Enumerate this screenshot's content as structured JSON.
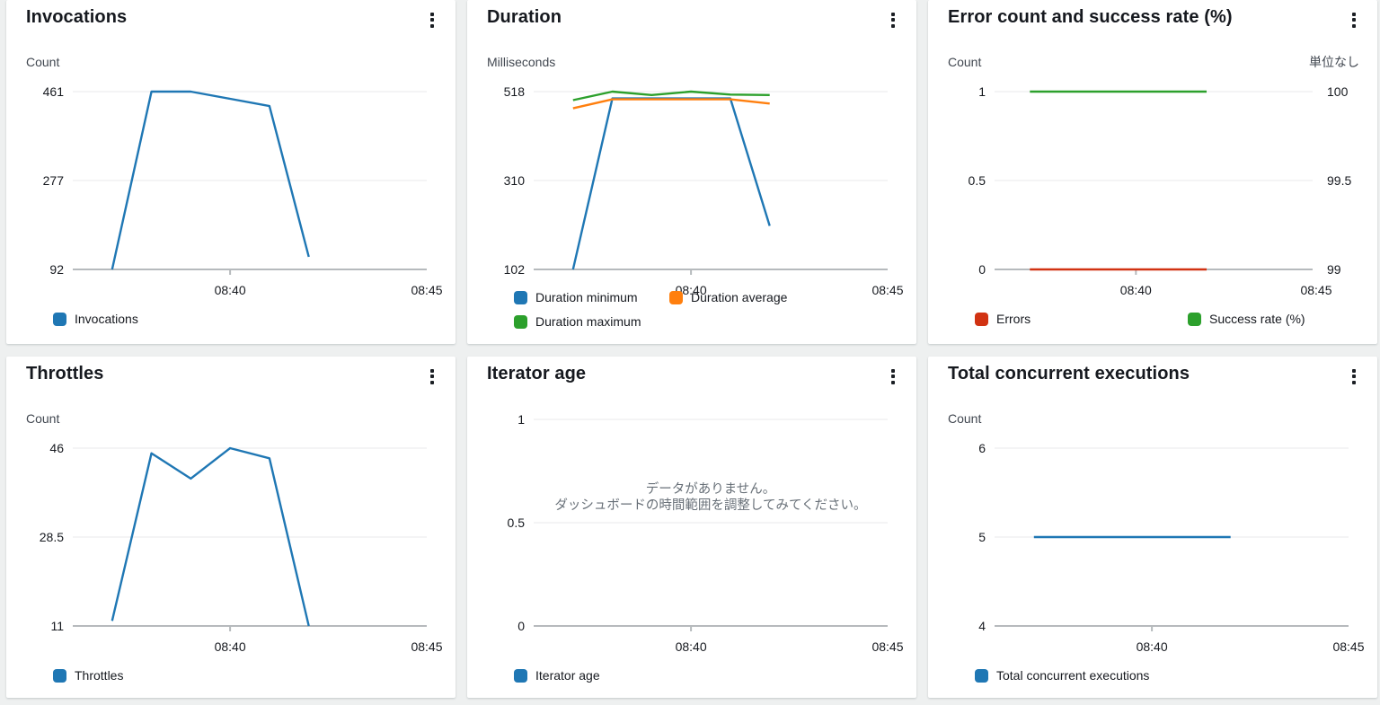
{
  "widget_menu_icon": "ellipsis-vertical-icon",
  "x_axis_range": [
    "08:36",
    "08:45"
  ],
  "chart_data": [
    {
      "type": "line",
      "title": "Invocations",
      "unit": "Count",
      "yticks": [
        461,
        277,
        92
      ],
      "xticks": [
        "08:40",
        "08:45"
      ],
      "xtick_minutes": [
        40,
        45
      ],
      "x_times": [
        "08:37",
        "08:38",
        "08:39",
        "08:40",
        "08:41",
        "08:42"
      ],
      "x_minutes": [
        37,
        38,
        39,
        40,
        41,
        42
      ],
      "series": [
        {
          "name": "Invocations",
          "color": "#1f77b4",
          "axis": "left",
          "values": [
            92,
            461,
            461,
            446,
            431,
            118
          ]
        }
      ]
    },
    {
      "type": "line",
      "title": "Duration",
      "unit": "Milliseconds",
      "yticks": [
        518,
        310,
        102
      ],
      "xticks": [
        "08:40",
        "08:45"
      ],
      "xtick_minutes": [
        40,
        45
      ],
      "x_times": [
        "08:37",
        "08:38",
        "08:39",
        "08:40",
        "08:41",
        "08:42"
      ],
      "x_minutes": [
        37,
        38,
        39,
        40,
        41,
        42
      ],
      "series": [
        {
          "name": "Duration minimum",
          "color": "#1f77b4",
          "axis": "left",
          "values": [
            102,
            502,
            502,
            502,
            502,
            204
          ]
        },
        {
          "name": "Duration average",
          "color": "#ff7f0e",
          "axis": "left",
          "values": [
            479,
            500,
            500,
            500,
            500,
            490
          ]
        },
        {
          "name": "Duration maximum",
          "color": "#2ca02c",
          "axis": "left",
          "values": [
            498,
            518,
            510,
            518,
            511,
            510
          ]
        }
      ]
    },
    {
      "type": "line",
      "title": "Error count and success rate (%)",
      "unit": "Count",
      "right_unit": "単位なし",
      "yticks": [
        1,
        0.5,
        0
      ],
      "right_yticks": [
        100,
        99.5,
        99
      ],
      "xticks": [
        "08:40",
        "08:45"
      ],
      "xtick_minutes": [
        40,
        45
      ],
      "x_times": [
        "08:37",
        "08:38",
        "08:39",
        "08:40",
        "08:41",
        "08:42"
      ],
      "x_minutes": [
        37,
        38,
        39,
        40,
        41,
        42
      ],
      "series": [
        {
          "name": "Errors",
          "color": "#d13212",
          "axis": "left",
          "values": [
            0,
            0,
            0,
            0,
            0,
            0
          ]
        },
        {
          "name": "Success rate (%)",
          "color": "#2ca02c",
          "axis": "right",
          "values": [
            100,
            100,
            100,
            100,
            100,
            100
          ]
        }
      ]
    },
    {
      "type": "line",
      "title": "Throttles",
      "unit": "Count",
      "yticks": [
        46,
        28.5,
        11
      ],
      "xticks": [
        "08:40",
        "08:45"
      ],
      "xtick_minutes": [
        40,
        45
      ],
      "x_times": [
        "08:37",
        "08:38",
        "08:39",
        "08:40",
        "08:41",
        "08:42"
      ],
      "x_minutes": [
        37,
        38,
        39,
        40,
        41,
        42
      ],
      "series": [
        {
          "name": "Throttles",
          "color": "#1f77b4",
          "axis": "left",
          "values": [
            12,
            45,
            40,
            46,
            44,
            11
          ]
        }
      ]
    },
    {
      "type": "line",
      "title": "Iterator age",
      "unit": null,
      "yticks": [
        1,
        0.5,
        0
      ],
      "xticks": [
        "08:40",
        "08:45"
      ],
      "xtick_minutes": [
        40,
        45
      ],
      "x_times": [],
      "x_minutes": [],
      "no_data_message": [
        "データがありません。",
        "ダッシュボードの時間範囲を調整してみてください。"
      ],
      "series": [
        {
          "name": "Iterator age",
          "color": "#1f77b4",
          "axis": "left",
          "values": []
        }
      ]
    },
    {
      "type": "line",
      "title": "Total concurrent executions",
      "unit": "Count",
      "yticks": [
        6,
        5,
        4
      ],
      "xticks": [
        "08:40",
        "08:45"
      ],
      "xtick_minutes": [
        40,
        45
      ],
      "x_times": [
        "08:37",
        "08:38",
        "08:39",
        "08:40",
        "08:41",
        "08:42"
      ],
      "x_minutes": [
        37,
        38,
        39,
        40,
        41,
        42
      ],
      "series": [
        {
          "name": "Total concurrent executions",
          "color": "#1f77b4",
          "axis": "left",
          "values": [
            5,
            5,
            5,
            5,
            5,
            5
          ]
        }
      ]
    }
  ]
}
